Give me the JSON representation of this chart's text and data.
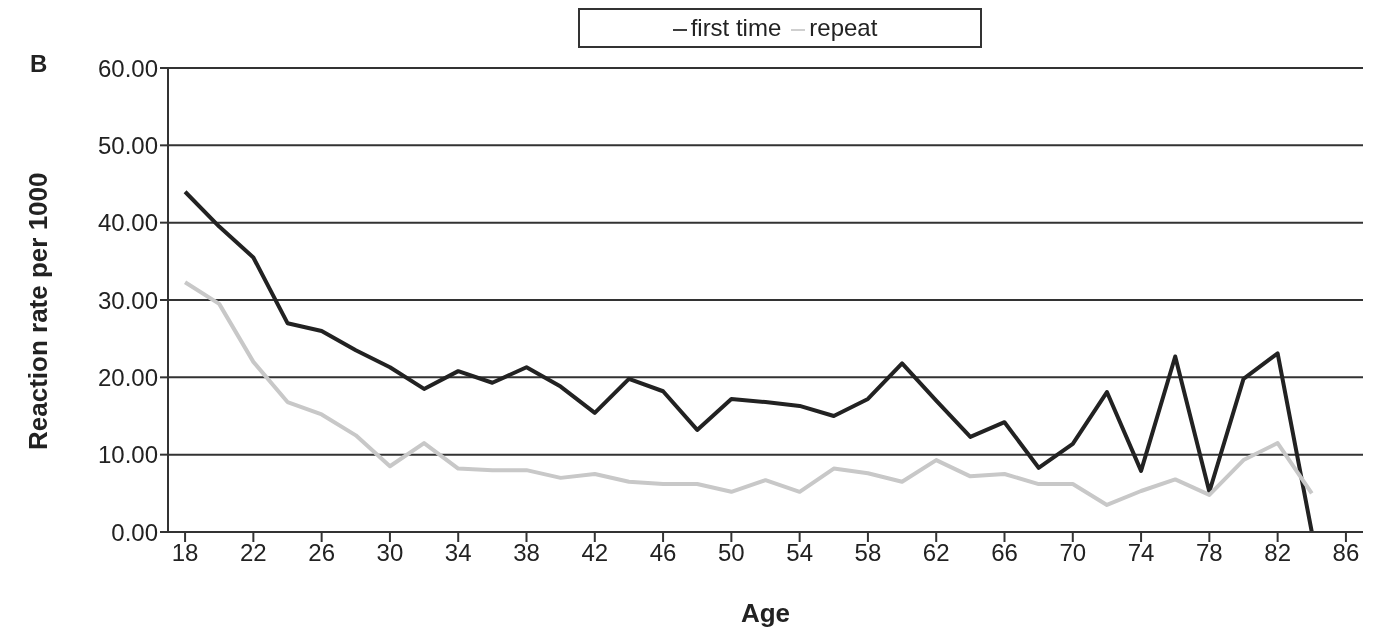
{
  "chart_data": {
    "type": "line",
    "xlabel": "Age",
    "ylabel": "Reaction rate per 1000",
    "annotations": [
      "B"
    ],
    "x": [
      18,
      20,
      22,
      24,
      26,
      28,
      30,
      32,
      34,
      36,
      38,
      40,
      42,
      44,
      46,
      48,
      50,
      52,
      54,
      56,
      58,
      60,
      62,
      64,
      66,
      68,
      70,
      72,
      74,
      76,
      78,
      80,
      82,
      84
    ],
    "series": [
      {
        "name": "first time",
        "color": "#222222",
        "values": [
          44,
          39.5,
          35.5,
          27,
          26,
          23.5,
          21.3,
          18.5,
          20.8,
          19.3,
          21.3,
          18.8,
          15.4,
          19.8,
          18.2,
          13.2,
          17.2,
          16.8,
          16.3,
          15,
          17.2,
          21.8,
          17,
          12.3,
          14.2,
          8.3,
          11.4,
          18.1,
          7.9,
          22.7,
          5.2,
          19.8,
          23.1,
          0
        ]
      },
      {
        "name": "repeat",
        "color": "#c8c8c8",
        "values": [
          32.3,
          29.5,
          22,
          16.8,
          15.2,
          12.5,
          8.5,
          11.5,
          8.2,
          8,
          8,
          7,
          7.5,
          6.5,
          6.2,
          6.2,
          5.2,
          6.7,
          5.2,
          8.2,
          7.6,
          6.5,
          9.3,
          7.2,
          7.5,
          6.2,
          6.2,
          3.5,
          5.3,
          6.8,
          4.8,
          9.3,
          11.5,
          5
        ]
      }
    ],
    "xlim": [
      17,
      87
    ],
    "xticks": [
      18,
      22,
      26,
      30,
      34,
      38,
      42,
      46,
      50,
      54,
      58,
      62,
      66,
      70,
      74,
      78,
      82,
      86
    ],
    "ylim": [
      0,
      60
    ],
    "yticks": [
      {
        "value": 0,
        "label": "0.00"
      },
      {
        "value": 10,
        "label": "10.00"
      },
      {
        "value": 20,
        "label": "20.00"
      },
      {
        "value": 30,
        "label": "30.00"
      },
      {
        "value": 40,
        "label": "40.00"
      },
      {
        "value": 50,
        "label": "50.00"
      },
      {
        "value": 60,
        "label": "60.00"
      }
    ],
    "grid": "y",
    "legend": "top",
    "marker": "none",
    "line_style": "solid"
  }
}
